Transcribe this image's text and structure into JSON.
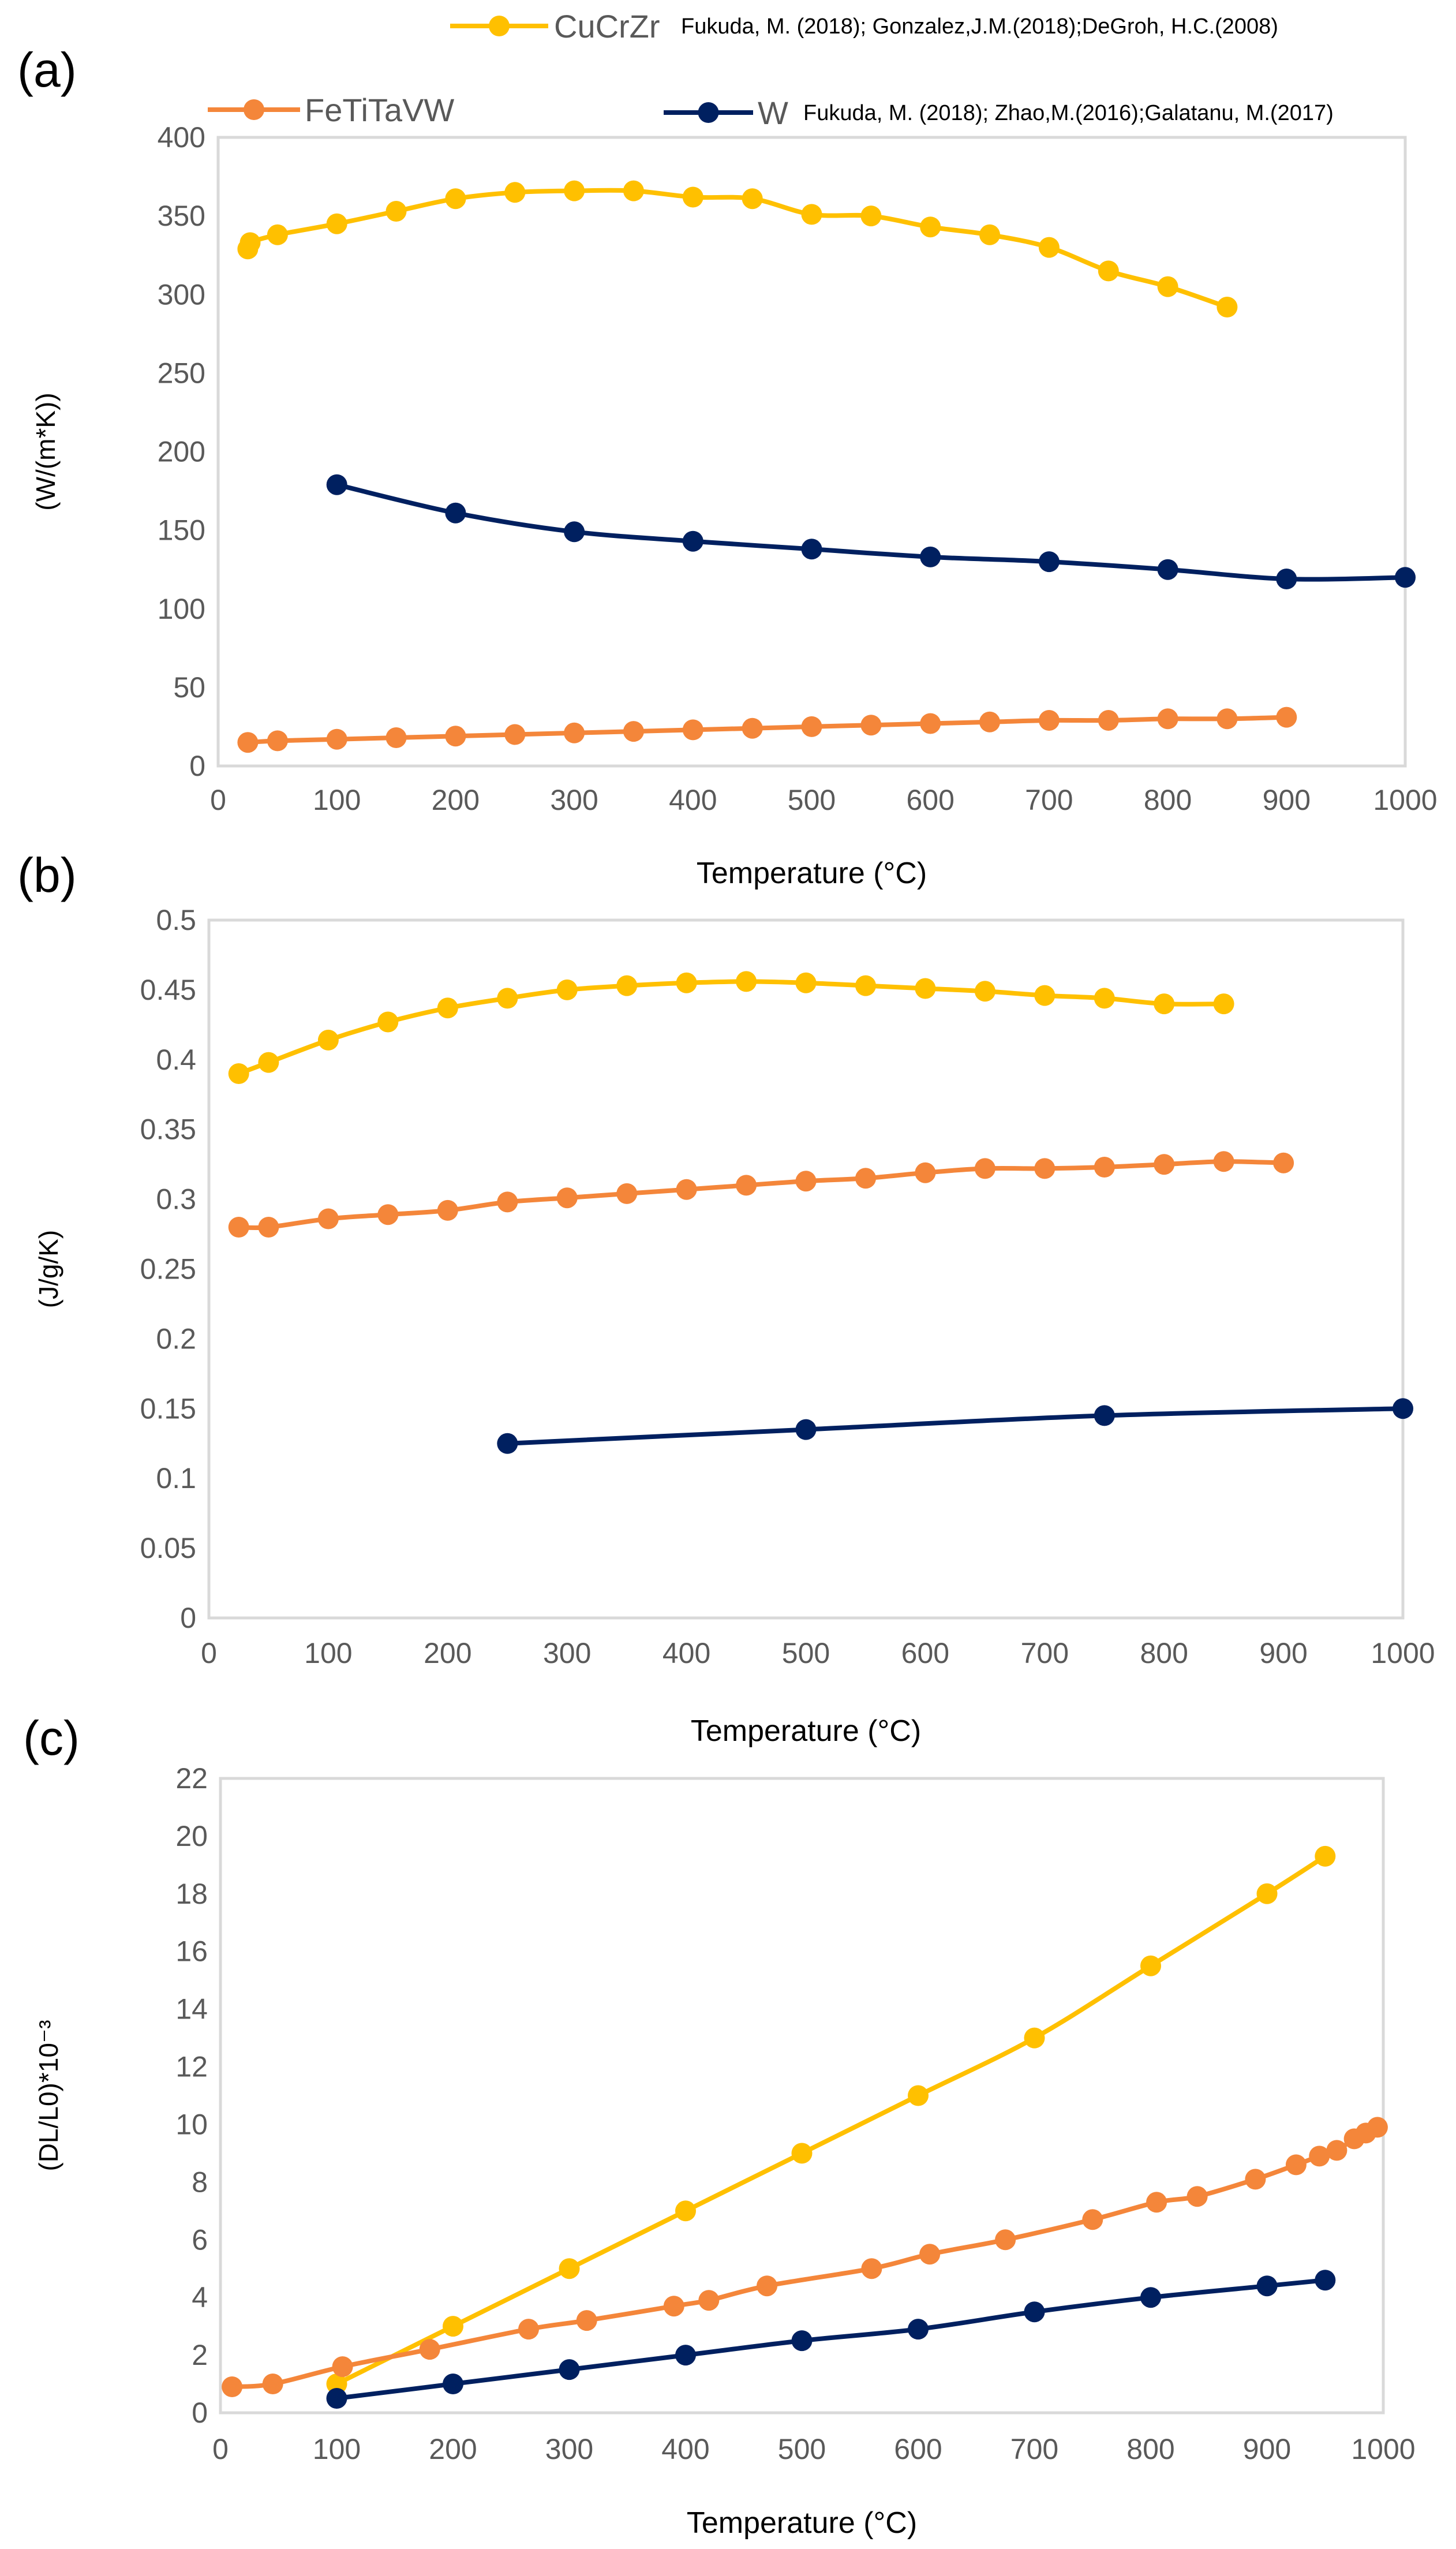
{
  "colors": {
    "CuCrZr": "#FFC000",
    "FeTiTaVW": "#F4863A",
    "W": "#002060",
    "axis": "#d9d9d9",
    "tick_text": "#595959"
  },
  "legend": [
    {
      "name": "CuCrZr",
      "source": "Fukuda, M. (2018); Gonzalez,J.M.(2018);DeGroh, H.C.(2008)"
    },
    {
      "name": "FeTiTaVW",
      "source": ""
    },
    {
      "name": "W",
      "source": "Fukuda, M. (2018); Zhao,M.(2016);Galatanu, M.(2017)"
    }
  ],
  "chart_data": [
    {
      "panel": "(a)",
      "type": "line",
      "title": "",
      "xlabel": "Temperature (°C)",
      "ylabel": "(W/(m*K))",
      "xlim": [
        0,
        1000
      ],
      "xticks": [
        0,
        100,
        200,
        300,
        400,
        500,
        600,
        700,
        800,
        900,
        1000
      ],
      "ylim": [
        0,
        400
      ],
      "yticks": [
        0,
        50,
        100,
        150,
        200,
        250,
        300,
        350,
        400
      ],
      "ytick_labels": [
        "0",
        "50",
        "100",
        "150",
        "200",
        "250",
        "300",
        "350",
        "400"
      ],
      "series": [
        {
          "name": "CuCrZr",
          "x": [
            25,
            27,
            50,
            100,
            150,
            200,
            250,
            300,
            350,
            400,
            450,
            500,
            550,
            600,
            650,
            700,
            750,
            800,
            850
          ],
          "y": [
            329,
            333,
            338,
            345,
            353,
            361,
            365,
            366,
            366,
            362,
            361,
            351,
            350,
            343,
            338,
            330,
            315,
            305,
            292
          ]
        },
        {
          "name": "W",
          "x": [
            100,
            200,
            300,
            400,
            500,
            600,
            700,
            800,
            900,
            1000
          ],
          "y": [
            179,
            161,
            149,
            143,
            138,
            133,
            130,
            125,
            119,
            120
          ]
        },
        {
          "name": "FeTiTaVW",
          "x": [
            25,
            50,
            100,
            150,
            200,
            250,
            300,
            350,
            400,
            450,
            500,
            550,
            600,
            650,
            700,
            750,
            800,
            850,
            900
          ],
          "y": [
            15,
            16,
            17,
            18,
            19,
            20,
            21,
            22,
            23,
            24,
            25,
            26,
            27,
            28,
            29,
            29,
            30,
            30,
            31
          ]
        }
      ]
    },
    {
      "panel": "(b)",
      "type": "line",
      "title": "",
      "xlabel": "Temperature (°C)",
      "ylabel": "(J/g/K)",
      "xlim": [
        0,
        1000
      ],
      "xticks": [
        0,
        100,
        200,
        300,
        400,
        500,
        600,
        700,
        800,
        900,
        1000
      ],
      "ylim": [
        0,
        0.5
      ],
      "yticks": [
        0,
        0.05,
        0.1,
        0.15,
        0.2,
        0.25,
        0.3,
        0.35,
        0.4,
        0.45,
        0.5
      ],
      "ytick_labels": [
        "0",
        "0.05",
        "0.1",
        "0.15",
        "0.2",
        "0.25",
        "0.3",
        "0.35",
        "0.4",
        "0.45",
        "0.5"
      ],
      "series": [
        {
          "name": "CuCrZr",
          "x": [
            25,
            50,
            100,
            150,
            200,
            250,
            300,
            350,
            400,
            450,
            500,
            550,
            600,
            650,
            700,
            750,
            800,
            850
          ],
          "y": [
            0.39,
            0.398,
            0.414,
            0.427,
            0.437,
            0.444,
            0.45,
            0.453,
            0.455,
            0.456,
            0.455,
            0.453,
            0.451,
            0.449,
            0.446,
            0.444,
            0.44,
            0.44
          ]
        },
        {
          "name": "FeTiTaVW",
          "x": [
            25,
            50,
            100,
            150,
            200,
            250,
            300,
            350,
            400,
            450,
            500,
            550,
            600,
            650,
            700,
            750,
            800,
            850,
            900
          ],
          "y": [
            0.28,
            0.28,
            0.286,
            0.289,
            0.292,
            0.298,
            0.301,
            0.304,
            0.307,
            0.31,
            0.313,
            0.315,
            0.319,
            0.322,
            0.322,
            0.323,
            0.325,
            0.327,
            0.326
          ]
        },
        {
          "name": "W",
          "x": [
            250,
            500,
            750,
            1000
          ],
          "y": [
            0.125,
            0.135,
            0.145,
            0.15
          ]
        }
      ]
    },
    {
      "panel": "(c)",
      "type": "line",
      "title": "",
      "xlabel": "Temperature (°C)",
      "ylabel": "(DL/L0)*10⁻³",
      "xlim": [
        0,
        1000
      ],
      "xticks": [
        0,
        100,
        200,
        300,
        400,
        500,
        600,
        700,
        800,
        900,
        1000
      ],
      "ylim": [
        0,
        22
      ],
      "yticks": [
        0,
        2,
        4,
        6,
        8,
        10,
        12,
        14,
        16,
        18,
        20,
        22
      ],
      "ytick_labels": [
        "0",
        "2",
        "4",
        "6",
        "8",
        "10",
        "12",
        "14",
        "16",
        "18",
        "20",
        "22"
      ],
      "series": [
        {
          "name": "CuCrZr",
          "x": [
            100,
            200,
            300,
            400,
            500,
            600,
            700,
            800,
            900,
            950
          ],
          "y": [
            1.0,
            3.0,
            5.0,
            7.0,
            9.0,
            11.0,
            13.0,
            15.5,
            18.0,
            19.3
          ]
        },
        {
          "name": "FeTiTaVW",
          "x": [
            10,
            45,
            105,
            180,
            265,
            315,
            390,
            420,
            470,
            560,
            610,
            675,
            750,
            805,
            840,
            890,
            925,
            945,
            960,
            975,
            985,
            995
          ],
          "y": [
            0.9,
            1.0,
            1.6,
            2.2,
            2.9,
            3.2,
            3.7,
            3.9,
            4.4,
            5.0,
            5.5,
            6.0,
            6.7,
            7.3,
            7.5,
            8.1,
            8.6,
            8.9,
            9.1,
            9.5,
            9.7,
            9.9
          ]
        },
        {
          "name": "W",
          "x": [
            100,
            200,
            300,
            400,
            500,
            600,
            700,
            800,
            900,
            950
          ],
          "y": [
            0.5,
            1.0,
            1.5,
            2.0,
            2.5,
            2.9,
            3.5,
            4.0,
            4.4,
            4.6
          ]
        }
      ]
    }
  ]
}
